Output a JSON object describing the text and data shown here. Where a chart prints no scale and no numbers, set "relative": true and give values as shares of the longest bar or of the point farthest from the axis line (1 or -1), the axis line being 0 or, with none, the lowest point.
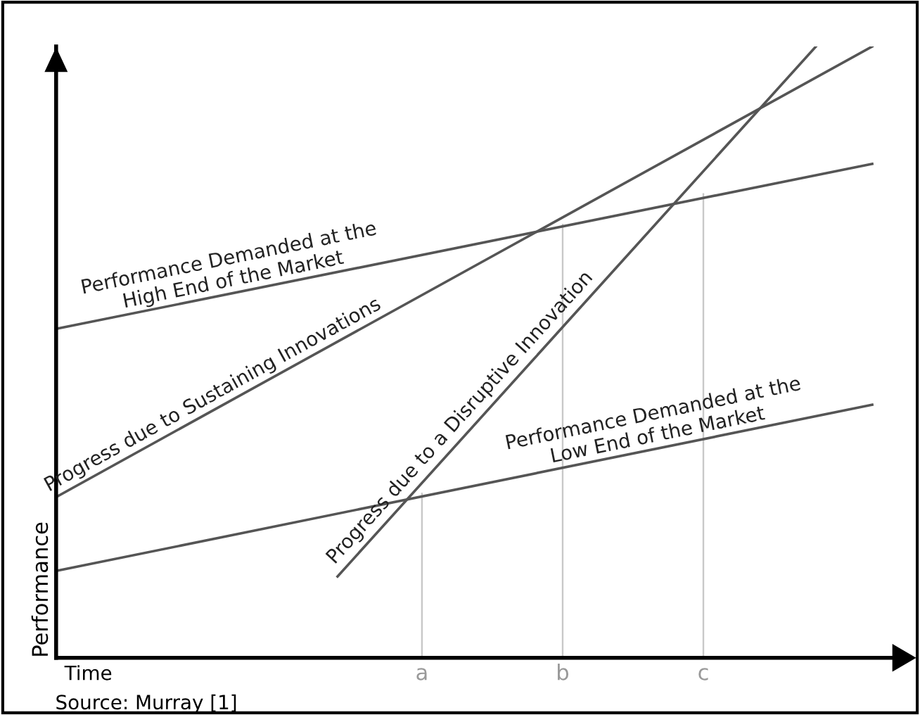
{
  "chart_data": {
    "type": "line",
    "relative": true,
    "xlabel": "Time",
    "ylabel": "Performance",
    "categories": [
      null,
      null,
      null,
      null,
      null,
      null,
      null,
      null,
      null,
      null,
      null,
      null,
      null,
      "a",
      null,
      null,
      null,
      null,
      "b",
      null,
      null,
      null,
      null,
      "c",
      null,
      null,
      null,
      null,
      null,
      null
    ],
    "series": [
      {
        "name": "Performance Demanded at the\nHigh End of the Market",
        "color": "#555555",
        "values": [
          0.538,
          null,
          null,
          null,
          null,
          null,
          null,
          null,
          null,
          null,
          null,
          null,
          null,
          null,
          null,
          null,
          null,
          null,
          null,
          null,
          null,
          null,
          null,
          null,
          null,
          null,
          null,
          null,
          null,
          0.808
        ]
      },
      {
        "name": "Progress due to Sustaining Innovations",
        "color": "#555555",
        "values": [
          0.263,
          null,
          null,
          null,
          null,
          null,
          null,
          null,
          null,
          null,
          null,
          null,
          null,
          null,
          null,
          null,
          null,
          null,
          null,
          null,
          null,
          null,
          null,
          null,
          null,
          null,
          null,
          null,
          null,
          1.0
        ]
      },
      {
        "name": "Progress due to a Disruptive Innovation",
        "color": "#555555",
        "values": [
          null,
          null,
          null,
          null,
          null,
          null,
          null,
          null,
          null,
          null,
          0.133,
          null,
          null,
          null,
          null,
          null,
          null,
          null,
          null,
          null,
          null,
          null,
          null,
          null,
          null,
          null,
          null,
          1.0,
          null,
          null
        ]
      },
      {
        "name": "Performance Demanded at the\nLow End of the Market",
        "color": "#555555",
        "values": [
          0.142,
          null,
          null,
          null,
          null,
          null,
          null,
          null,
          null,
          null,
          null,
          null,
          null,
          null,
          null,
          null,
          null,
          null,
          null,
          null,
          null,
          null,
          null,
          null,
          null,
          null,
          null,
          null,
          null,
          0.414
        ]
      },
      {
        "type": "bar",
        "color": "#c8c8c8",
        "values": [
          null,
          null,
          null,
          null,
          null,
          null,
          null,
          null,
          null,
          null,
          null,
          null,
          null,
          0.27,
          null,
          null,
          null,
          null,
          0.71,
          null,
          null,
          null,
          null,
          0.76,
          null,
          null,
          null,
          null,
          null,
          null
        ]
      }
    ],
    "grid": false,
    "legend": false,
    "marker": "none",
    "line_style": "solid",
    "annotations": [
      "Source: Murray [1]"
    ]
  }
}
